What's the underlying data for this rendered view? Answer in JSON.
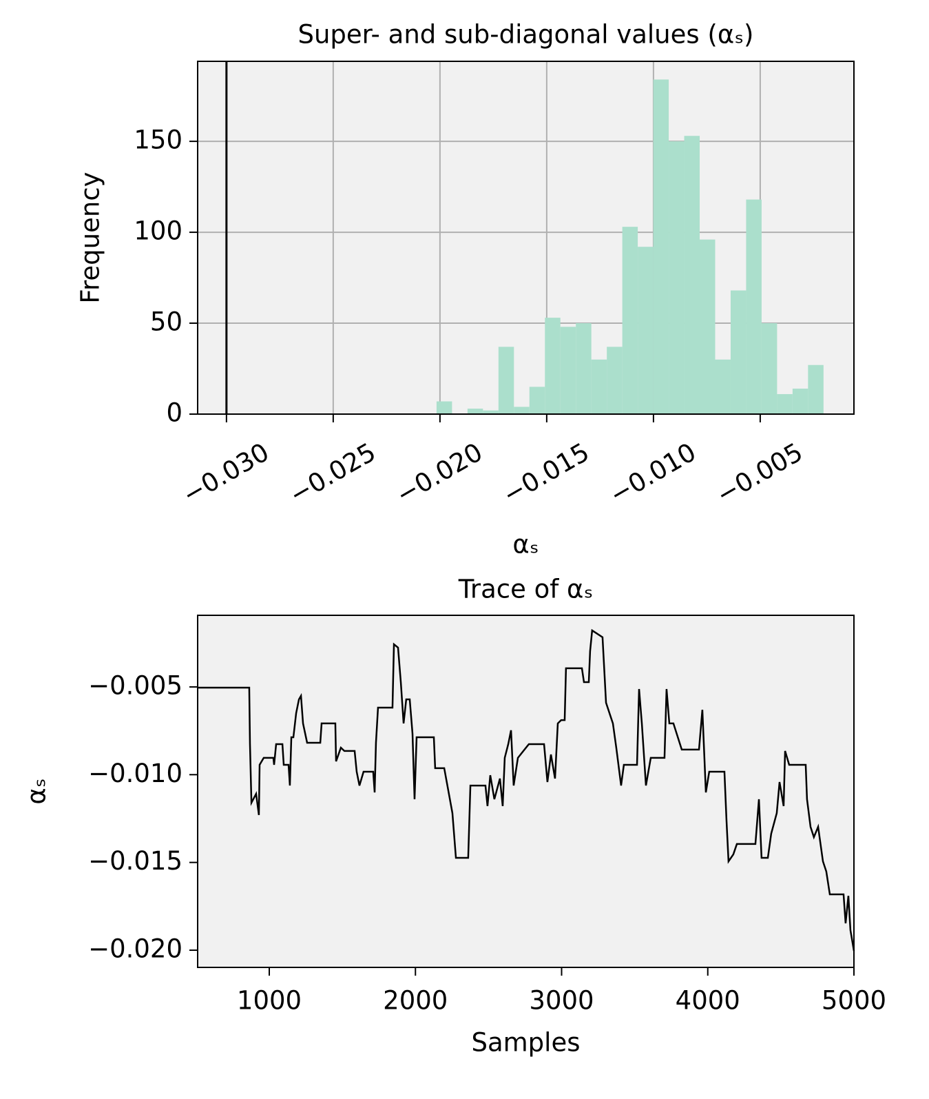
{
  "chart_data": [
    {
      "type": "histogram",
      "title": "Super- and sub-diagonal values (αₛ)",
      "x_label": "αₛ",
      "y_label": "Frequency",
      "bins": [
        -0.02016,
        -0.019435,
        -0.01871,
        -0.017985,
        -0.01726,
        -0.016535,
        -0.01581,
        -0.015085,
        -0.01436,
        -0.013635,
        -0.01291,
        -0.012185,
        -0.01146,
        -0.010735,
        -0.01001,
        -0.009285,
        -0.00856,
        -0.007835,
        -0.00711,
        -0.006385,
        -0.00566,
        -0.004935,
        -0.00421,
        -0.003485,
        -0.00276,
        -0.002035
      ],
      "counts": [
        7,
        0,
        3,
        2,
        37,
        4,
        15,
        53,
        48,
        50,
        30,
        37,
        103,
        92,
        184,
        150,
        153,
        96,
        30,
        68,
        118,
        50,
        11,
        14,
        27
      ],
      "color": "#abdfcc",
      "facecolor": "#f1f1f1",
      "axvline": -0.03,
      "axvline_color": "#000000",
      "xlim": [
        -0.03135,
        -0.00061
      ],
      "ylim": [
        0,
        194
      ],
      "xticks": [
        {
          "value": -0.03,
          "label": "−0.030"
        },
        {
          "value": -0.025,
          "label": "−0.025"
        },
        {
          "value": -0.02,
          "label": "−0.020"
        },
        {
          "value": -0.015,
          "label": "−0.015"
        },
        {
          "value": -0.01,
          "label": "−0.010"
        },
        {
          "value": -0.005,
          "label": "−0.005"
        }
      ],
      "yticks": [
        0,
        50,
        100,
        150
      ],
      "xtick_rotation": 30,
      "grid": true
    },
    {
      "type": "line",
      "title": "Trace of αₛ",
      "x_label": "Samples",
      "y_label": "αₛ",
      "color": "#000000",
      "facecolor": "#f1f1f1",
      "x": [
        510,
        863,
        868,
        878,
        910,
        929,
        934,
        962,
        1028,
        1033,
        1047,
        1090,
        1099,
        1132,
        1141,
        1151,
        1165,
        1184,
        1203,
        1217,
        1231,
        1259,
        1349,
        1358,
        1452,
        1457,
        1490,
        1514,
        1584,
        1598,
        1617,
        1645,
        1711,
        1721,
        1730,
        1744,
        1843,
        1853,
        1881,
        1900,
        1919,
        1937,
        1961,
        1980,
        1994,
        2008,
        2126,
        2135,
        2197,
        2253,
        2277,
        2361,
        2376,
        2479,
        2493,
        2512,
        2540,
        2578,
        2597,
        2611,
        2635,
        2654,
        2672,
        2701,
        2776,
        2880,
        2903,
        2927,
        2955,
        2974,
        2997,
        3021,
        3030,
        3139,
        3153,
        3186,
        3195,
        3209,
        3280,
        3304,
        3351,
        3374,
        3407,
        3426,
        3516,
        3530,
        3549,
        3577,
        3610,
        3704,
        3718,
        3737,
        3765,
        3822,
        3940,
        3963,
        3987,
        4010,
        4114,
        4128,
        4142,
        4175,
        4199,
        4326,
        4350,
        4368,
        4411,
        4434,
        4472,
        4491,
        4519,
        4529,
        4557,
        4670,
        4679,
        4703,
        4726,
        4755,
        4788,
        4811,
        4835,
        4929,
        4943,
        4962,
        4976,
        5000
      ],
      "values": [
        -0.00504,
        -0.00504,
        -0.00826,
        -0.0116,
        -0.01109,
        -0.0123,
        -0.00944,
        -0.00904,
        -0.00904,
        -0.00944,
        -0.00826,
        -0.00826,
        -0.00944,
        -0.00944,
        -0.01062,
        -0.00787,
        -0.00787,
        -0.00649,
        -0.00571,
        -0.00551,
        -0.00708,
        -0.00818,
        -0.00818,
        -0.00708,
        -0.00708,
        -0.00924,
        -0.00846,
        -0.00865,
        -0.00865,
        -0.00983,
        -0.01062,
        -0.00983,
        -0.00983,
        -0.01101,
        -0.00818,
        -0.00618,
        -0.00618,
        -0.00257,
        -0.00276,
        -0.00473,
        -0.00708,
        -0.00571,
        -0.00571,
        -0.00767,
        -0.0114,
        -0.00787,
        -0.00787,
        -0.00963,
        -0.00963,
        -0.01219,
        -0.01474,
        -0.01474,
        -0.01062,
        -0.01062,
        -0.01179,
        -0.01003,
        -0.0114,
        -0.01022,
        -0.01179,
        -0.00904,
        -0.00826,
        -0.00747,
        -0.01062,
        -0.00904,
        -0.00826,
        -0.00826,
        -0.01042,
        -0.00885,
        -0.01022,
        -0.00708,
        -0.00689,
        -0.00689,
        -0.00394,
        -0.00394,
        -0.00473,
        -0.00473,
        -0.00296,
        -0.00178,
        -0.00217,
        -0.0059,
        -0.00708,
        -0.00846,
        -0.01062,
        -0.00944,
        -0.00944,
        -0.00512,
        -0.00708,
        -0.01062,
        -0.00904,
        -0.00904,
        -0.00512,
        -0.00708,
        -0.00708,
        -0.00857,
        -0.00857,
        -0.0063,
        -0.01101,
        -0.00983,
        -0.00983,
        -0.01258,
        -0.01494,
        -0.01454,
        -0.01395,
        -0.01395,
        -0.0114,
        -0.01474,
        -0.01474,
        -0.01336,
        -0.01219,
        -0.01042,
        -0.01179,
        -0.00865,
        -0.00944,
        -0.00944,
        -0.0114,
        -0.01297,
        -0.01356,
        -0.01297,
        -0.01494,
        -0.01552,
        -0.01682,
        -0.01682,
        -0.01847,
        -0.0169,
        -0.01886,
        -0.02004
      ],
      "xlim": [
        510,
        5000
      ],
      "ylim": [
        -0.02098,
        -0.00092
      ],
      "xticks": [
        1000,
        2000,
        3000,
        4000,
        5000
      ],
      "yticks": [
        {
          "value": -0.02,
          "label": "−0.020"
        },
        {
          "value": -0.015,
          "label": "−0.015"
        },
        {
          "value": -0.01,
          "label": "−0.010"
        },
        {
          "value": -0.005,
          "label": "−0.005"
        }
      ],
      "grid": false
    }
  ]
}
